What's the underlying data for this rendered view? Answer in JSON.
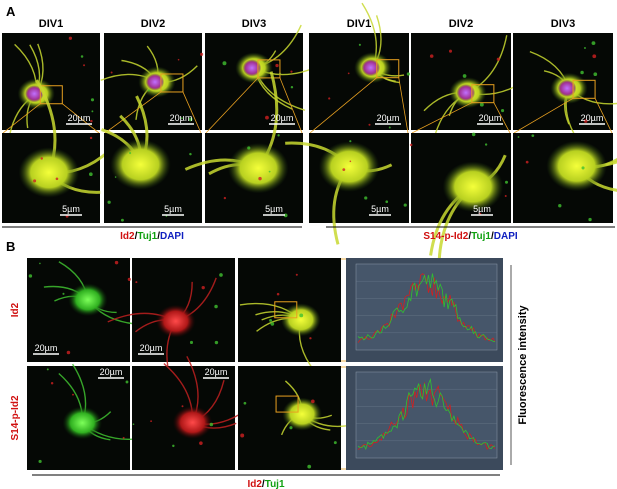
{
  "panel_a": {
    "label": "A",
    "left": {
      "headers": [
        "DIV1",
        "DIV2",
        "DIV3"
      ],
      "top_scale_bars": [
        "20µm",
        "20µm",
        "20µm"
      ],
      "bottom_scale_bars": [
        "5µm",
        "5µm",
        "5µm"
      ],
      "caption": [
        "Id2",
        "/",
        "Tuj1",
        "/",
        "DAPI"
      ]
    },
    "right": {
      "headers": [
        "DIV1",
        "DIV2",
        "DIV3"
      ],
      "top_scale_bars": [
        "20µm",
        "20µm",
        "20µm"
      ],
      "bottom_scale_bars": [
        "5µm",
        "5µm"
      ],
      "caption": [
        "S14-p-Id2",
        "/",
        "Tuj1",
        "/",
        "DAPI"
      ]
    }
  },
  "panel_b": {
    "label": "B",
    "rows": [
      {
        "label": "Id2",
        "scale_bars": [
          "20µm",
          "20µm"
        ]
      },
      {
        "label": "S14-p-Id2",
        "scale_bars": [
          "20µm",
          "20µm"
        ]
      }
    ],
    "y_axis_label": "Fluorescence intensity",
    "caption": [
      "Id2",
      "/",
      "Tuj1"
    ]
  }
}
